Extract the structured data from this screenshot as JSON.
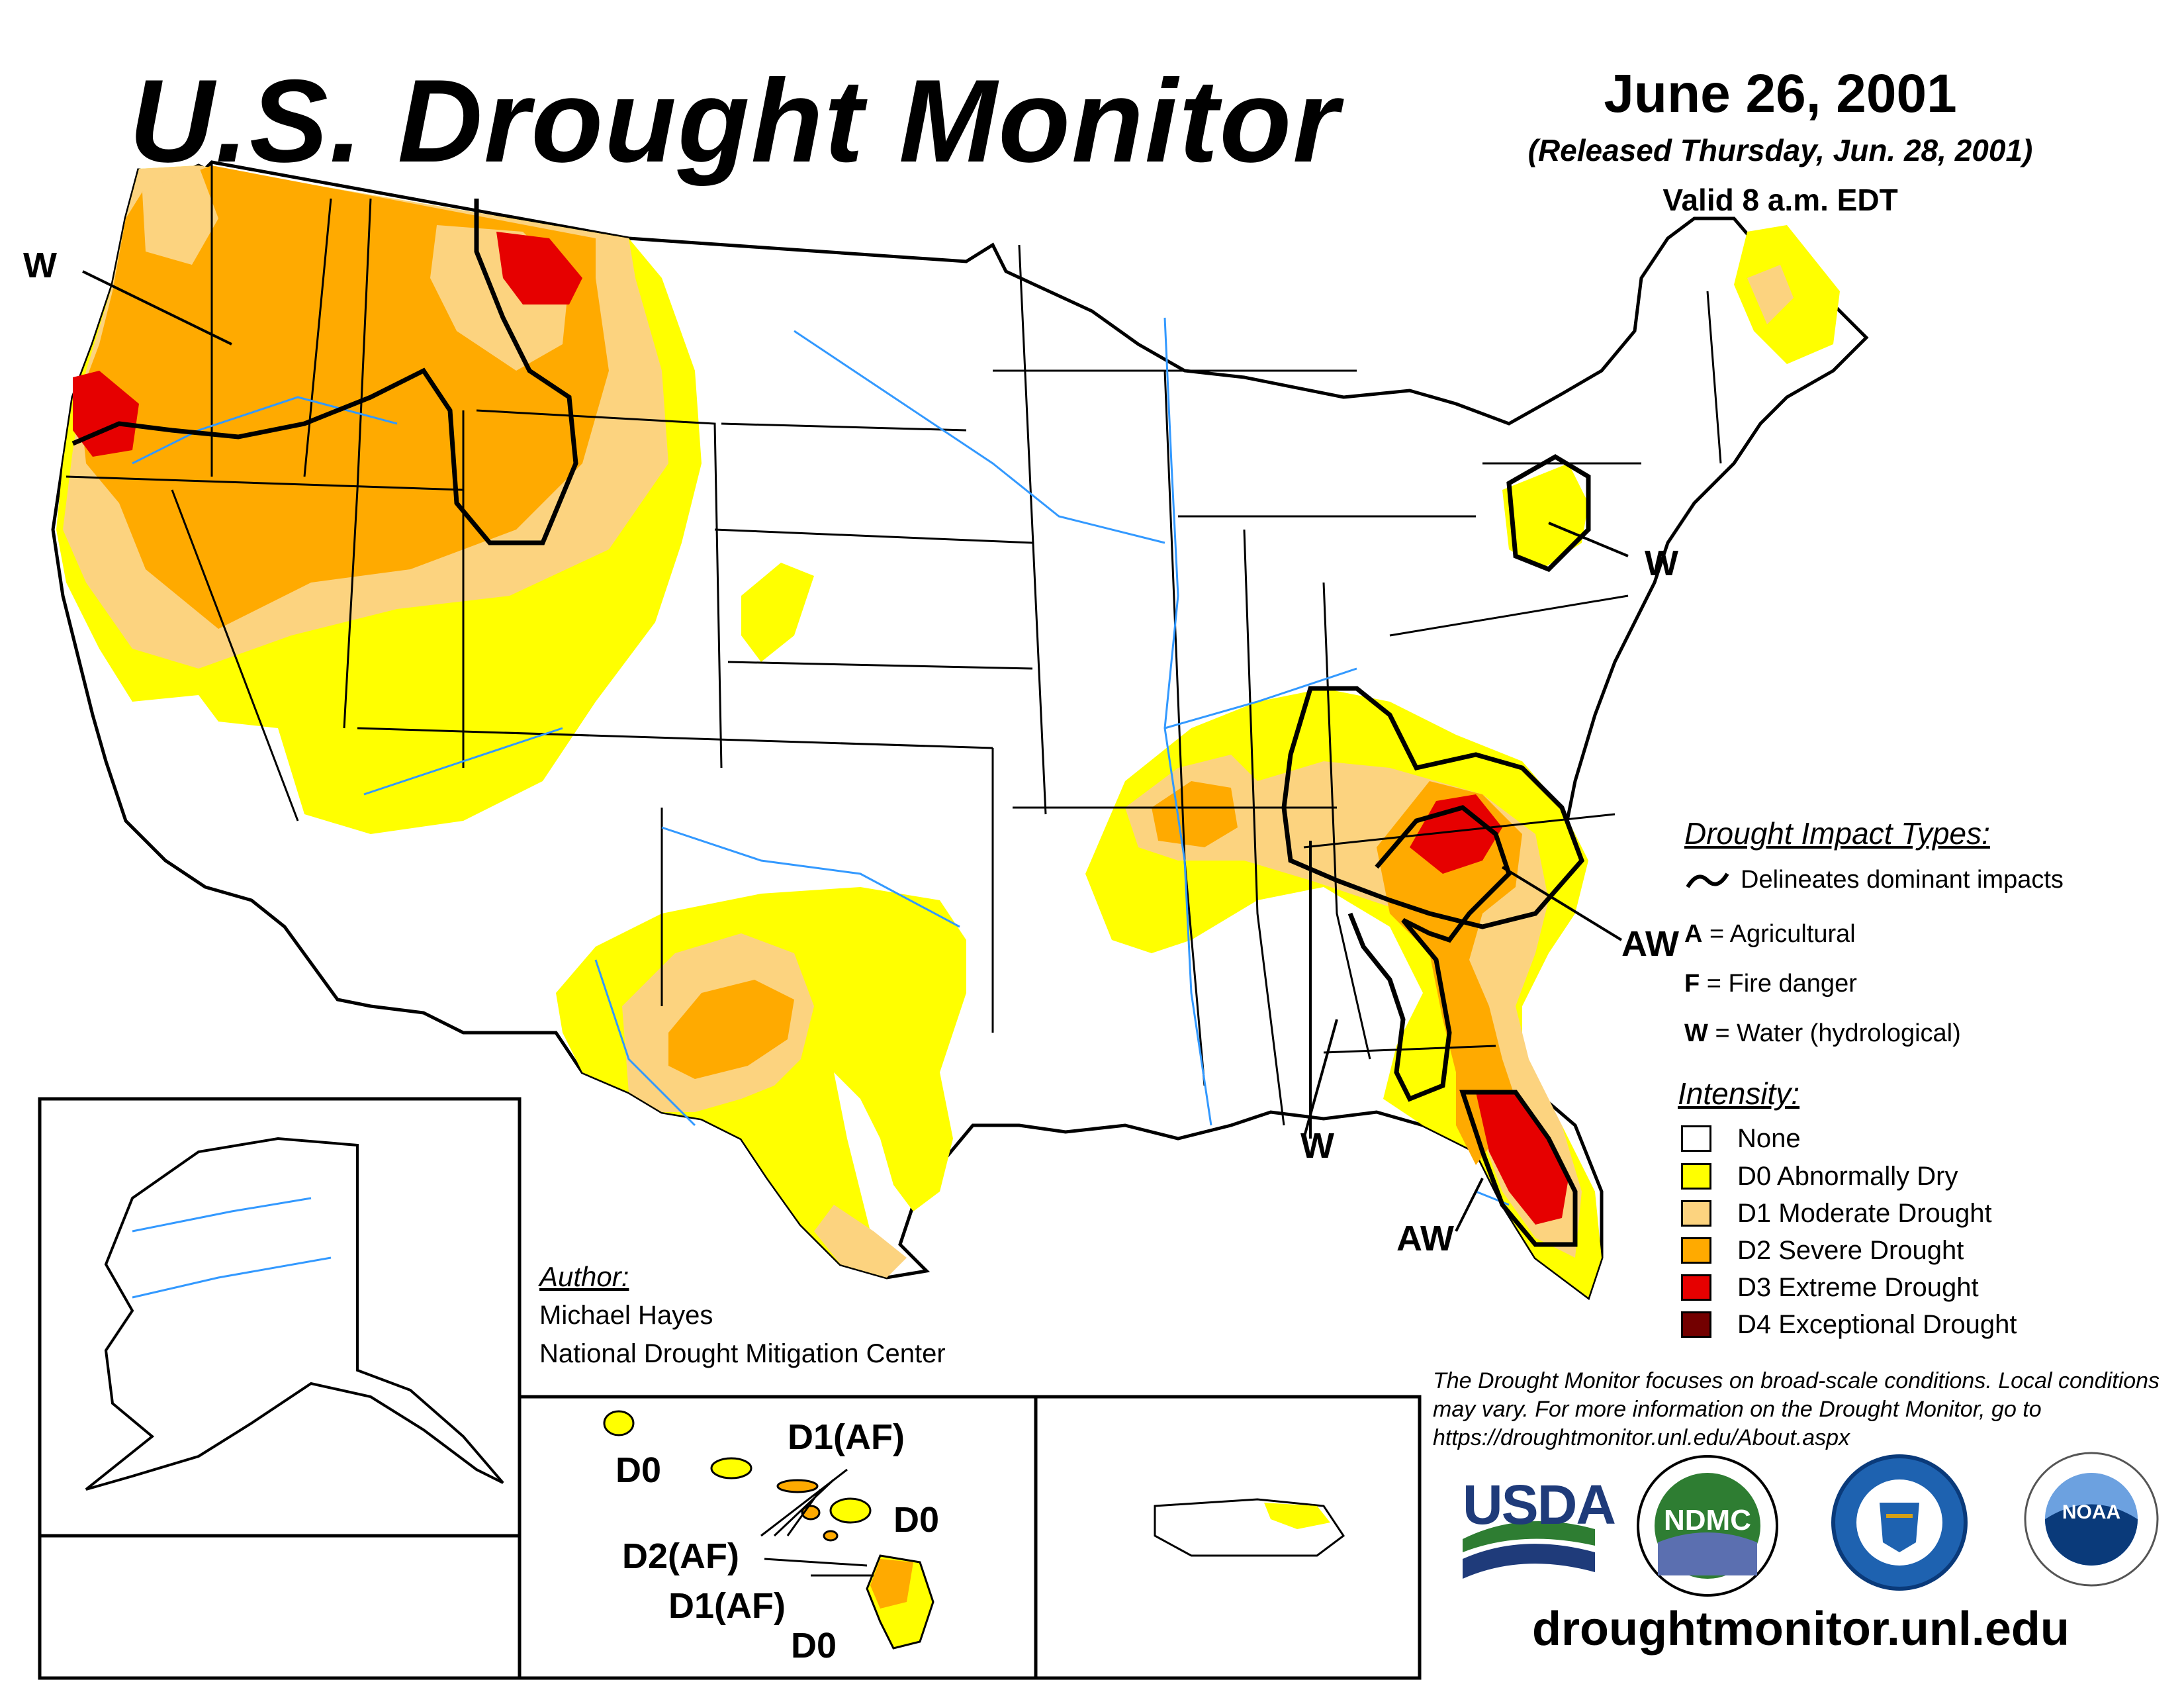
{
  "header": {
    "title": "U.S. Drought Monitor",
    "date": "June 26, 2001",
    "released": "(Released Thursday, Jun. 28, 2001)",
    "valid": "Valid 8 a.m. EDT"
  },
  "map_labels": {
    "nw_w": "W",
    "ne_w": "W",
    "se_aw": "AW",
    "se_w": "W",
    "fl_aw": "AW"
  },
  "impact_legend": {
    "heading": "Drought Impact Types:",
    "delineates": "Delineates dominant impacts",
    "items": [
      {
        "code": "A",
        "desc": "= Agricultural"
      },
      {
        "code": "F",
        "desc": "= Fire danger"
      },
      {
        "code": "W",
        "desc": "= Water (hydrological)"
      }
    ]
  },
  "intensity_legend": {
    "heading": "Intensity:",
    "items": [
      {
        "label": "None",
        "color": "#ffffff"
      },
      {
        "label": "D0 Abnormally Dry",
        "color": "#ffff00"
      },
      {
        "label": "D1 Moderate Drought",
        "color": "#fcd37f"
      },
      {
        "label": "D2 Severe Drought",
        "color": "#ffaa00"
      },
      {
        "label": "D3 Extreme Drought",
        "color": "#e60000"
      },
      {
        "label": "D4 Exceptional Drought",
        "color": "#730000"
      }
    ]
  },
  "author": {
    "heading": "Author:",
    "name": "Michael Hayes",
    "org": "National Drought Mitigation Center"
  },
  "hawaii_labels": {
    "d0_kauai": "D0",
    "d1af_top": "D1(AF)",
    "d0_maui": "D0",
    "d2af": "D2(AF)",
    "d1af_big": "D1(AF)",
    "d0_big": "D0"
  },
  "disclaimer": "The Drought Monitor focuses on broad-scale conditions. Local conditions may vary. For more information on the Drought Monitor, go to https://droughtmonitor.unl.edu/About.aspx",
  "logos": {
    "usda": "USDA",
    "ndmc": "NDMC",
    "noaa": "NOAA"
  },
  "footer_url": "droughtmonitor.unl.edu"
}
